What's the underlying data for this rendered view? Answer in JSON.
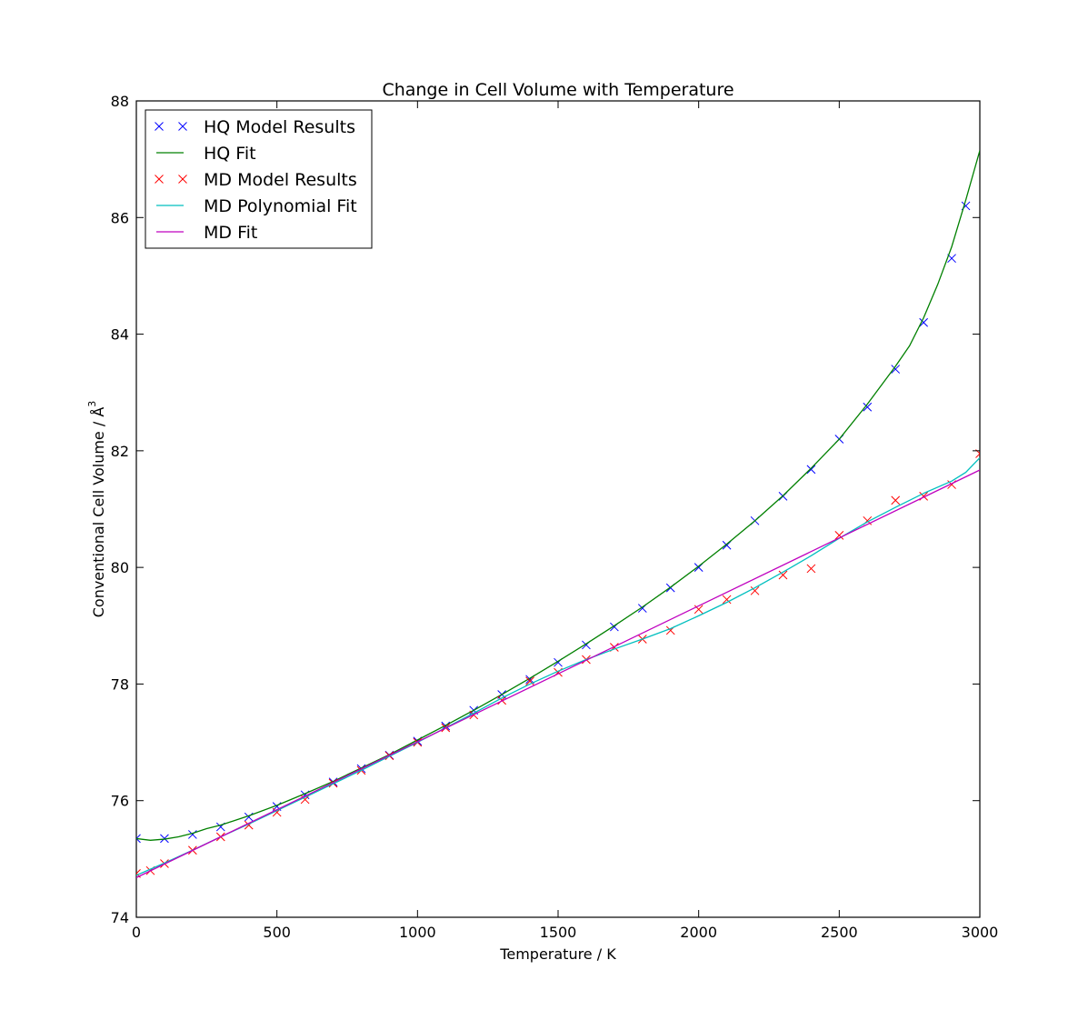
{
  "chart_data": {
    "type": "line",
    "title": "Change in Cell Volume with Temperature",
    "xlabel": "Temperature / K",
    "ylabel": "Conventional Cell Volume / Å",
    "ylabel_superscript": "3",
    "xlim": [
      0,
      3000
    ],
    "ylim": [
      74,
      88
    ],
    "xticks": [
      0,
      500,
      1000,
      1500,
      2000,
      2500,
      3000
    ],
    "yticks": [
      74,
      76,
      78,
      80,
      82,
      84,
      86,
      88
    ],
    "xtick_labels": [
      "0",
      "500",
      "1000",
      "1500",
      "2000",
      "2500",
      "3000"
    ],
    "ytick_labels": [
      "74",
      "76",
      "78",
      "80",
      "82",
      "84",
      "86",
      "88"
    ],
    "grid": false,
    "legend_position": "top-left",
    "series": [
      {
        "name": "HQ Model Results",
        "kind": "markers",
        "color": "#0000ff",
        "x": [
          0,
          100,
          200,
          300,
          400,
          500,
          600,
          700,
          800,
          900,
          1000,
          1100,
          1200,
          1300,
          1400,
          1500,
          1600,
          1700,
          1800,
          1900,
          2000,
          2100,
          2200,
          2300,
          2400,
          2500,
          2600,
          2700,
          2800,
          2900,
          2950
        ],
        "y": [
          75.35,
          75.35,
          75.42,
          75.55,
          75.72,
          75.9,
          76.1,
          76.32,
          76.55,
          76.78,
          77.02,
          77.28,
          77.55,
          77.82,
          78.08,
          78.37,
          78.67,
          78.98,
          79.3,
          79.65,
          80.0,
          80.38,
          80.8,
          81.22,
          81.68,
          82.2,
          82.75,
          83.4,
          84.2,
          85.3,
          86.2
        ]
      },
      {
        "name": "HQ Fit",
        "kind": "line",
        "color": "#008000",
        "x": [
          0,
          50,
          100,
          150,
          200,
          250,
          300,
          400,
          500,
          600,
          700,
          800,
          900,
          1000,
          1100,
          1200,
          1300,
          1400,
          1500,
          1600,
          1700,
          1800,
          1900,
          2000,
          2100,
          2200,
          2300,
          2400,
          2500,
          2600,
          2700,
          2750,
          2800,
          2850,
          2900,
          2950,
          3000
        ],
        "y": [
          75.35,
          75.32,
          75.34,
          75.38,
          75.44,
          75.52,
          75.58,
          75.74,
          75.92,
          76.12,
          76.33,
          76.56,
          76.79,
          77.04,
          77.29,
          77.55,
          77.82,
          78.1,
          78.39,
          78.69,
          79.0,
          79.32,
          79.66,
          80.02,
          80.4,
          80.8,
          81.23,
          81.7,
          82.2,
          82.8,
          83.45,
          83.8,
          84.28,
          84.85,
          85.5,
          86.3,
          87.15
        ]
      },
      {
        "name": "MD Model Results",
        "kind": "markers",
        "color": "#ff0000",
        "x": [
          0,
          50,
          100,
          200,
          300,
          400,
          500,
          600,
          700,
          800,
          900,
          1000,
          1100,
          1200,
          1300,
          1400,
          1500,
          1600,
          1700,
          1800,
          1900,
          2000,
          2100,
          2200,
          2300,
          2400,
          2500,
          2600,
          2700,
          2800,
          2900,
          3000
        ],
        "y": [
          74.75,
          74.8,
          74.92,
          75.15,
          75.38,
          75.58,
          75.8,
          76.02,
          76.3,
          76.52,
          76.77,
          77.0,
          77.25,
          77.47,
          77.72,
          78.05,
          78.2,
          78.42,
          78.63,
          78.77,
          78.92,
          79.28,
          79.45,
          79.6,
          79.87,
          79.98,
          80.55,
          80.8,
          81.15,
          81.22,
          81.42,
          81.95
        ]
      },
      {
        "name": "MD Polynomial Fit",
        "kind": "line",
        "color": "#00bfbf",
        "x": [
          0,
          100,
          200,
          300,
          400,
          500,
          600,
          700,
          800,
          900,
          1000,
          1100,
          1200,
          1300,
          1400,
          1500,
          1600,
          1700,
          1800,
          1900,
          2000,
          2100,
          2200,
          2300,
          2400,
          2500,
          2600,
          2700,
          2800,
          2900,
          2950,
          3000
        ],
        "y": [
          74.72,
          74.93,
          75.15,
          75.38,
          75.6,
          75.83,
          76.06,
          76.29,
          76.52,
          76.76,
          77.0,
          77.25,
          77.5,
          77.76,
          78.0,
          78.22,
          78.42,
          78.6,
          78.77,
          78.95,
          79.17,
          79.4,
          79.65,
          79.92,
          80.2,
          80.5,
          80.78,
          81.03,
          81.27,
          81.48,
          81.63,
          81.88
        ]
      },
      {
        "name": "MD Fit",
        "kind": "line",
        "color": "#bf00bf",
        "x": [
          0,
          3000
        ],
        "y": [
          74.68,
          81.67
        ]
      }
    ]
  }
}
